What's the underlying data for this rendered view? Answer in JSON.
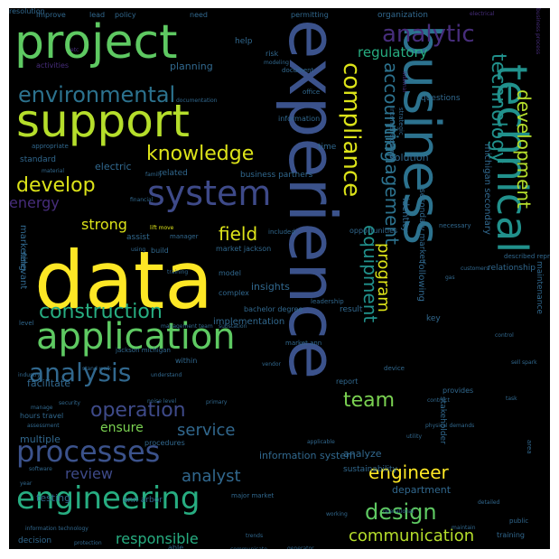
{
  "words": [
    {
      "text": "data",
      "color": "#fde725"
    },
    {
      "text": "experience",
      "color": "#3b528b"
    },
    {
      "text": "business",
      "color": "#2c728e"
    },
    {
      "text": "technical",
      "color": "#21918c"
    },
    {
      "text": "project",
      "color": "#5ec962"
    },
    {
      "text": "support",
      "color": "#b5de2b"
    },
    {
      "text": "application",
      "color": "#5ec962"
    },
    {
      "text": "engineering",
      "color": "#27ad81"
    },
    {
      "text": "processes",
      "color": "#3b528b"
    },
    {
      "text": "system",
      "color": "#3e4a89"
    },
    {
      "text": "analytic",
      "color": "#472d7b"
    },
    {
      "text": "compliance",
      "color": "#dce319"
    },
    {
      "text": "technology",
      "color": "#21918c"
    },
    {
      "text": "environmental",
      "color": "#2c728e"
    },
    {
      "text": "construction",
      "color": "#27ad81"
    },
    {
      "text": "analysis",
      "color": "#31688e"
    },
    {
      "text": "operation",
      "color": "#3e4a89"
    },
    {
      "text": "knowledge",
      "color": "#dce319"
    },
    {
      "text": "develop",
      "color": "#dce319"
    },
    {
      "text": "energy",
      "color": "#472d7b"
    },
    {
      "text": "team",
      "color": "#7ad151"
    },
    {
      "text": "design",
      "color": "#5ec962"
    },
    {
      "text": "engineer",
      "color": "#fde725"
    },
    {
      "text": "communication",
      "color": "#b5de2b"
    },
    {
      "text": "accounting",
      "color": "#2c728e"
    },
    {
      "text": "management",
      "color": "#2c728e"
    },
    {
      "text": "development",
      "color": "#b5de2b"
    },
    {
      "text": "equipment",
      "color": "#21918c"
    },
    {
      "text": "program",
      "color": "#dce319"
    },
    {
      "text": "field",
      "color": "#dce319"
    },
    {
      "text": "strong",
      "color": "#dce319"
    },
    {
      "text": "service",
      "color": "#31688e"
    },
    {
      "text": "review",
      "color": "#3e4a89"
    },
    {
      "text": "analyst",
      "color": "#31688e"
    },
    {
      "text": "ensure",
      "color": "#7ad151"
    },
    {
      "text": "responsible",
      "color": "#27ad81"
    },
    {
      "text": "regulatory",
      "color": "#27ad81"
    },
    {
      "text": "improve",
      "color": "#31688e"
    },
    {
      "text": "lead",
      "color": "#31688e"
    },
    {
      "text": "policy",
      "color": "#31688e"
    },
    {
      "text": "need",
      "color": "#31688e"
    },
    {
      "text": "permitting",
      "color": "#31688e"
    },
    {
      "text": "organization",
      "color": "#31688e"
    },
    {
      "text": "electrical",
      "color": "#472d7b"
    },
    {
      "text": "business process",
      "color": "#472d7b"
    },
    {
      "text": "help",
      "color": "#31688e"
    },
    {
      "text": "risk",
      "color": "#31688e"
    },
    {
      "text": "modeling",
      "color": "#31688e"
    },
    {
      "text": "etc",
      "color": "#472d7b"
    },
    {
      "text": "activities",
      "color": "#472d7b"
    },
    {
      "text": "planning",
      "color": "#31688e"
    },
    {
      "text": "document",
      "color": "#31688e"
    },
    {
      "text": "office",
      "color": "#31688e"
    },
    {
      "text": "questions",
      "color": "#31688e"
    },
    {
      "text": "documentation",
      "color": "#31688e"
    },
    {
      "text": "internal",
      "color": "#472d7b"
    },
    {
      "text": "appropriate",
      "color": "#31688e"
    },
    {
      "text": "information",
      "color": "#31688e"
    },
    {
      "text": "time",
      "color": "#31688e"
    },
    {
      "text": "solution",
      "color": "#31688e"
    },
    {
      "text": "standard",
      "color": "#31688e"
    },
    {
      "text": "electric",
      "color": "#31688e"
    },
    {
      "text": "related",
      "color": "#31688e"
    },
    {
      "text": "business partners",
      "color": "#31688e"
    },
    {
      "text": "material",
      "color": "#31688e"
    },
    {
      "text": "family",
      "color": "#31688e"
    },
    {
      "text": "strategic",
      "color": "#31688e"
    },
    {
      "text": "internal external",
      "color": "#31688e"
    },
    {
      "text": "financial",
      "color": "#31688e"
    },
    {
      "text": "necessary",
      "color": "#31688e"
    },
    {
      "text": "identity",
      "color": "#31688e"
    },
    {
      "text": "michigan secondary",
      "color": "#31688e"
    },
    {
      "text": "secondary market",
      "color": "#31688e"
    },
    {
      "text": "market jackson",
      "color": "#31688e"
    },
    {
      "text": "lift move",
      "color": "#dce319"
    },
    {
      "text": "marketing",
      "color": "#31688e"
    },
    {
      "text": "assist",
      "color": "#31688e"
    },
    {
      "text": "manager",
      "color": "#31688e"
    },
    {
      "text": "included",
      "color": "#31688e"
    },
    {
      "text": "opportunities",
      "color": "#31688e"
    },
    {
      "text": "using",
      "color": "#31688e"
    },
    {
      "text": "build",
      "color": "#31688e"
    },
    {
      "text": "described representative",
      "color": "#31688e"
    },
    {
      "text": "customers",
      "color": "#31688e"
    },
    {
      "text": "relationship",
      "color": "#31688e"
    },
    {
      "text": "gas",
      "color": "#31688e"
    },
    {
      "text": "training",
      "color": "#31688e"
    },
    {
      "text": "model",
      "color": "#31688e"
    },
    {
      "text": "complex",
      "color": "#31688e"
    },
    {
      "text": "leadership",
      "color": "#31688e"
    },
    {
      "text": "insights",
      "color": "#31688e"
    },
    {
      "text": "relevant",
      "color": "#31688e"
    },
    {
      "text": "bachelor degree",
      "color": "#31688e"
    },
    {
      "text": "result",
      "color": "#31688e"
    },
    {
      "text": "key",
      "color": "#31688e"
    },
    {
      "text": "following",
      "color": "#31688e"
    },
    {
      "text": "control",
      "color": "#31688e"
    },
    {
      "text": "level",
      "color": "#31688e"
    },
    {
      "text": "management team",
      "color": "#31688e"
    },
    {
      "text": "substation",
      "color": "#31688e"
    },
    {
      "text": "implementation",
      "color": "#31688e"
    },
    {
      "text": "market ann",
      "color": "#31688e"
    },
    {
      "text": "maintenance",
      "color": "#31688e"
    },
    {
      "text": "jackson michigan",
      "color": "#31688e"
    },
    {
      "text": "within",
      "color": "#31688e"
    },
    {
      "text": "understand",
      "color": "#31688e"
    },
    {
      "text": "vendor",
      "color": "#31688e"
    },
    {
      "text": "device",
      "color": "#31688e"
    },
    {
      "text": "sell spark",
      "color": "#31688e"
    },
    {
      "text": "stand walk",
      "color": "#31688e"
    },
    {
      "text": "industry",
      "color": "#31688e"
    },
    {
      "text": "facilitate",
      "color": "#31688e"
    },
    {
      "text": "report",
      "color": "#31688e"
    },
    {
      "text": "security",
      "color": "#31688e"
    },
    {
      "text": "noise level",
      "color": "#31688e"
    },
    {
      "text": "primary",
      "color": "#31688e"
    },
    {
      "text": "provides",
      "color": "#31688e"
    },
    {
      "text": "contract",
      "color": "#31688e"
    },
    {
      "text": "task",
      "color": "#31688e"
    },
    {
      "text": "manage",
      "color": "#31688e"
    },
    {
      "text": "hours travel",
      "color": "#31688e"
    },
    {
      "text": "assessment",
      "color": "#31688e"
    },
    {
      "text": "stakeholder",
      "color": "#31688e"
    },
    {
      "text": "physical demands",
      "color": "#31688e"
    },
    {
      "text": "multiple",
      "color": "#31688e"
    },
    {
      "text": "procedures",
      "color": "#31688e"
    },
    {
      "text": "information system",
      "color": "#31688e"
    },
    {
      "text": "analyze",
      "color": "#31688e"
    },
    {
      "text": "utility",
      "color": "#31688e"
    },
    {
      "text": "applicable",
      "color": "#31688e"
    },
    {
      "text": "software",
      "color": "#31688e"
    },
    {
      "text": "sustainability",
      "color": "#31688e"
    },
    {
      "text": "year",
      "color": "#31688e"
    },
    {
      "text": "testing",
      "color": "#31688e"
    },
    {
      "text": "ann arbor",
      "color": "#31688e"
    },
    {
      "text": "major market",
      "color": "#31688e"
    },
    {
      "text": "department",
      "color": "#31688e"
    },
    {
      "text": "operational",
      "color": "#31688e"
    },
    {
      "text": "detailed",
      "color": "#31688e"
    },
    {
      "text": "public",
      "color": "#31688e"
    },
    {
      "text": "area",
      "color": "#31688e"
    },
    {
      "text": "information technology",
      "color": "#31688e"
    },
    {
      "text": "trends",
      "color": "#31688e"
    },
    {
      "text": "maintain",
      "color": "#31688e"
    },
    {
      "text": "decision",
      "color": "#31688e"
    },
    {
      "text": "protection",
      "color": "#31688e"
    },
    {
      "text": "working",
      "color": "#31688e"
    },
    {
      "text": "training",
      "color": "#31688e"
    },
    {
      "text": "able",
      "color": "#31688e"
    },
    {
      "text": "communicate",
      "color": "#31688e"
    },
    {
      "text": "generator",
      "color": "#31688e"
    },
    {
      "text": "resolution",
      "color": "#31688e"
    }
  ]
}
